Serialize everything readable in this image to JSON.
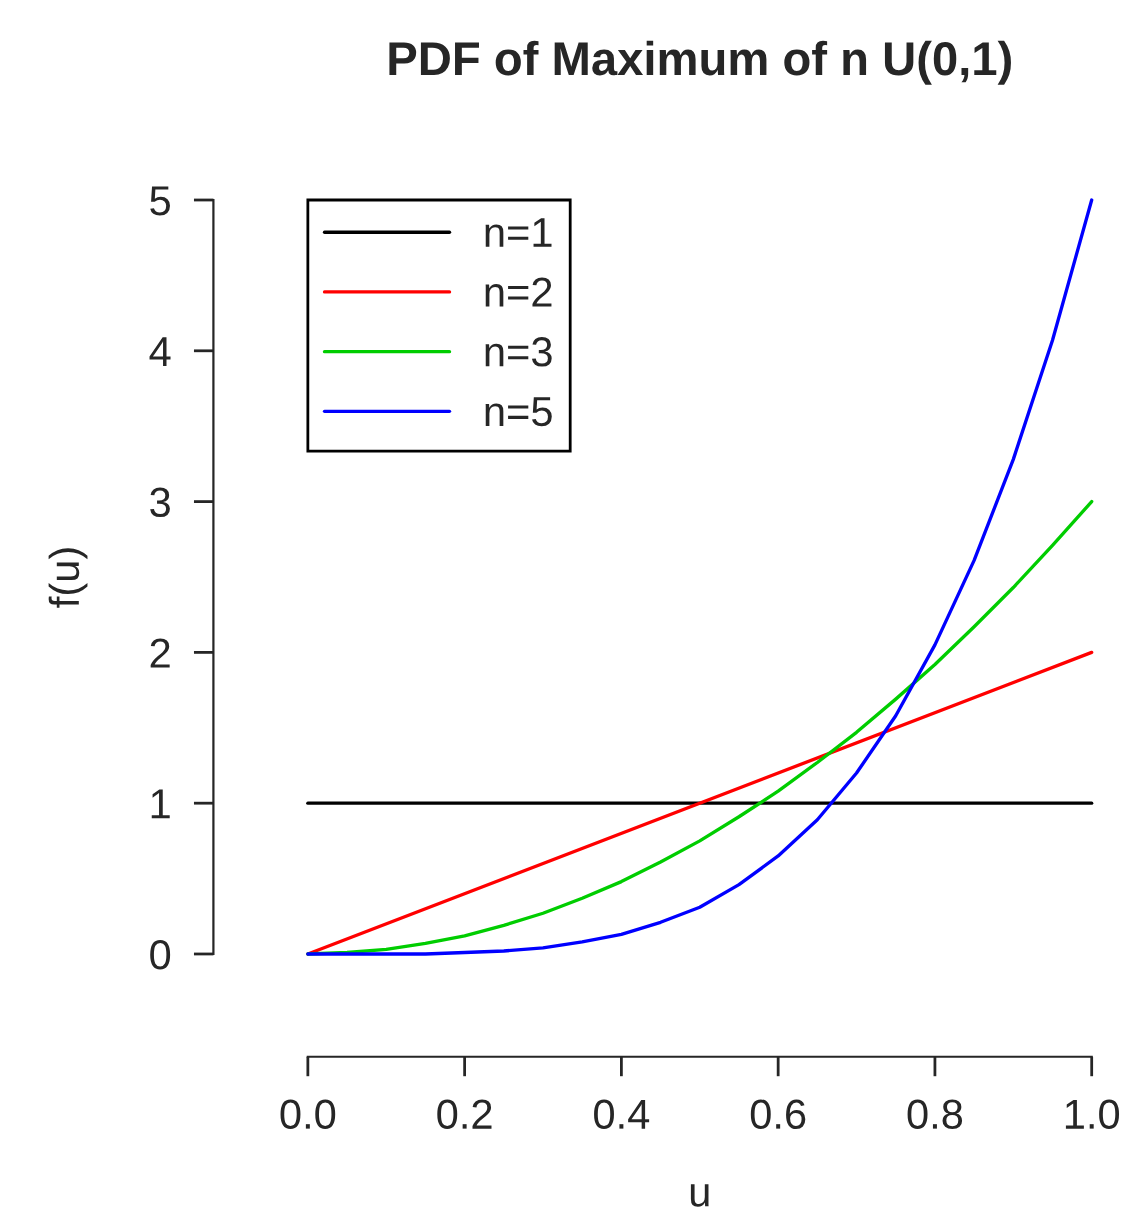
{
  "chart_data": {
    "type": "line",
    "title": "PDF of Maximum of n U(0,1)",
    "xlabel": "u",
    "ylabel": "f(u)",
    "xlim": [
      0,
      1
    ],
    "ylim": [
      0,
      5
    ],
    "xticks": [
      {
        "value": 0,
        "label": "0.0"
      },
      {
        "value": 0.2,
        "label": "0.2"
      },
      {
        "value": 0.4,
        "label": "0.4"
      },
      {
        "value": 0.6,
        "label": "0.6"
      },
      {
        "value": 0.8,
        "label": "0.8"
      },
      {
        "value": 1,
        "label": "1.0"
      }
    ],
    "yticks": [
      0,
      1,
      2,
      3,
      4,
      5
    ],
    "grid": false,
    "legend": "top left",
    "marker": "none",
    "line_style": "solid",
    "series": [
      {
        "name": "n=1",
        "color": "#000000",
        "x": [
          0,
          1
        ],
        "values": [
          1,
          1
        ]
      },
      {
        "name": "n=2",
        "color": "#ff0000",
        "x": [
          0,
          1
        ],
        "values": [
          0,
          2
        ]
      },
      {
        "name": "n=3",
        "color": "#00cd00",
        "x": [
          0,
          0.05,
          0.1,
          0.15,
          0.2,
          0.25,
          0.3,
          0.35,
          0.4,
          0.45,
          0.5,
          0.55,
          0.6,
          0.65,
          0.7,
          0.75,
          0.8,
          0.85,
          0.9,
          0.95,
          1
        ],
        "values": [
          0,
          0.01,
          0.03,
          0.07,
          0.12,
          0.19,
          0.27,
          0.37,
          0.48,
          0.61,
          0.75,
          0.91,
          1.08,
          1.27,
          1.47,
          1.69,
          1.92,
          2.17,
          2.43,
          2.71,
          3
        ]
      },
      {
        "name": "n=5",
        "color": "#0000ff",
        "x": [
          0,
          0.05,
          0.1,
          0.15,
          0.2,
          0.25,
          0.3,
          0.35,
          0.4,
          0.45,
          0.5,
          0.55,
          0.6,
          0.65,
          0.7,
          0.75,
          0.8,
          0.85,
          0.9,
          0.95,
          1
        ],
        "values": [
          0,
          0,
          0,
          0,
          0.01,
          0.02,
          0.04,
          0.08,
          0.13,
          0.21,
          0.31,
          0.46,
          0.65,
          0.89,
          1.2,
          1.58,
          2.05,
          2.61,
          3.28,
          4.07,
          5
        ]
      }
    ]
  }
}
